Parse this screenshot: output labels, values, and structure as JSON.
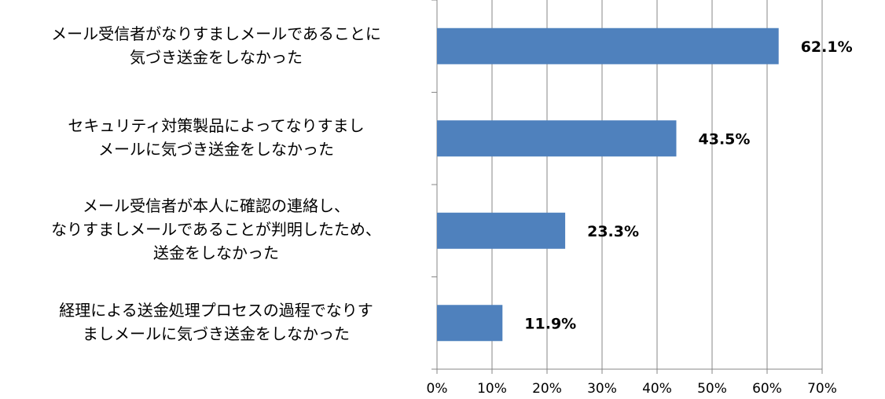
{
  "chart_data": {
    "type": "bar",
    "orientation": "horizontal",
    "categories": [
      "メール受信者がなりすましメールであることに\n気づき送金をしなかった",
      "セキュリティ対策製品によってなりすまし\nメールに気づき送金をしなかった",
      "メール受信者が本人に確認の連絡し、\nなりすましメールであることが判明したため、\n送金をしなかった",
      "経理による送金処理プロセスの過程でなりす\nましメールに気づき送金をしなかった"
    ],
    "values": [
      62.1,
      43.5,
      23.3,
      11.9
    ],
    "data_labels": [
      "62.1%",
      "43.5%",
      "23.3%",
      "11.9%"
    ],
    "xlim": [
      0,
      70
    ],
    "x_ticks": [
      "0%",
      "10%",
      "20%",
      "30%",
      "40%",
      "50%",
      "60%",
      "70%"
    ],
    "grid": "vertical",
    "legend": "none",
    "bar_color": "#4f81bd",
    "title": "",
    "xlabel": "",
    "ylabel": ""
  }
}
